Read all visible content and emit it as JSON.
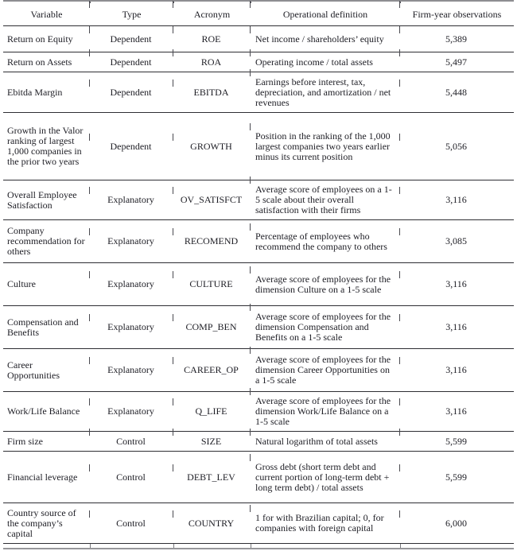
{
  "table": {
    "columns": [
      "Variable",
      "Type",
      "Acronym",
      "Operational definition",
      "Firm-year observations"
    ],
    "rows": [
      {
        "variable": "Return on Equity",
        "type": "Dependent",
        "acronym": "ROE",
        "definition": "Net income / shareholders’ equity",
        "observations": "5,389"
      },
      {
        "variable": "Return on Assets",
        "type": "Dependent",
        "acronym": "ROA",
        "definition": "Operating income / total assets",
        "observations": "5,497"
      },
      {
        "variable": "Ebitda Margin",
        "type": "Dependent",
        "acronym": "EBITDA",
        "definition": "Earnings before interest, tax, depreciation, and amortization / net revenues",
        "observations": "5,448"
      },
      {
        "variable": "Growth in the Valor ranking of largest 1,000 companies in the prior two years",
        "type": "Dependent",
        "acronym": "GROWTH",
        "definition": "Position in the ranking of the 1,000 largest companies two years earlier minus its current position",
        "observations": "5,056"
      },
      {
        "variable": "Overall Employee Satisfaction",
        "type": "Explanatory",
        "acronym": "OV_SATISFCT",
        "definition": "Average score of employees on a 1-5 scale about their overall satisfaction with their firms",
        "observations": "3,116"
      },
      {
        "variable": "Company recommendation for others",
        "type": "Explanatory",
        "acronym": "RECOMEND",
        "definition": "Percentage of employees who recommend the company to others",
        "observations": "3,085"
      },
      {
        "variable": "Culture",
        "type": "Explanatory",
        "acronym": "CULTURE",
        "definition": "Average score of employees for the dimension Culture on a 1-5 scale",
        "observations": "3,116"
      },
      {
        "variable": "Compensation and Benefits",
        "type": "Explanatory",
        "acronym": "COMP_BEN",
        "definition": "Average score of employees for the dimension Compensation and Benefits on a 1-5 scale",
        "observations": "3,116"
      },
      {
        "variable": "Career Opportunities",
        "type": "Explanatory",
        "acronym": "CAREER_OP",
        "definition": "Average score of employees for the dimension Career Opportunities on a 1-5 scale",
        "observations": "3,116"
      },
      {
        "variable": "Work/Life Balance",
        "type": "Explanatory",
        "acronym": "Q_LIFE",
        "definition": "Average score of employees for the dimension Work/Life Balance on a 1-5 scale",
        "observations": "3,116"
      },
      {
        "variable": "Firm size",
        "type": "Control",
        "acronym": "SIZE",
        "definition": "Natural logarithm of total assets",
        "observations": "5,599"
      },
      {
        "variable": "Financial leverage",
        "type": "Control",
        "acronym": "DEBT_LEV",
        "definition": "Gross debt (short term debt and current portion of long-term debt + long term debt) / total assets",
        "observations": "5,599"
      },
      {
        "variable": "Country source of the company’s capital",
        "type": "Control",
        "acronym": "COUNTRY",
        "definition": "1 for with Brazilian capital; 0, for companies with foreign capital",
        "observations": "6,000"
      }
    ]
  }
}
